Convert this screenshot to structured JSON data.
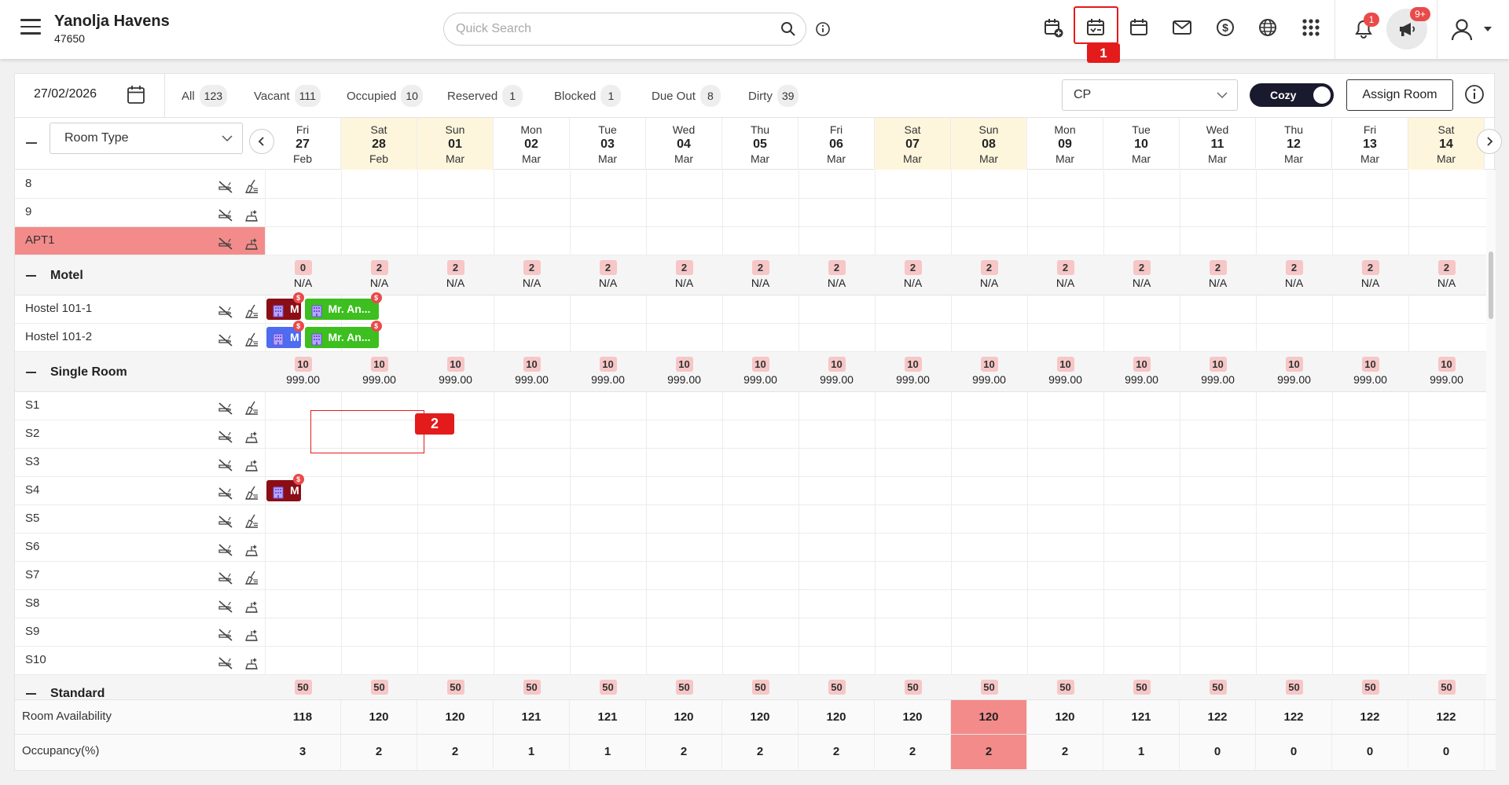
{
  "header": {
    "property_name": "Yanolja Havens",
    "property_id": "47650",
    "search_placeholder": "Quick Search",
    "icons": [
      "new-reservation-icon",
      "stay-view-icon",
      "calendar-icon",
      "mail-icon",
      "dollar-icon",
      "globe-icon",
      "apps-grid-icon"
    ],
    "notification_count": "1",
    "announcement_count": "9+",
    "highlight_1_label": "1"
  },
  "toolbar": {
    "date": "27/02/2026",
    "stats": [
      {
        "label": "All",
        "count": "123"
      },
      {
        "label": "Vacant",
        "count": "111"
      },
      {
        "label": "Occupied",
        "count": "10"
      },
      {
        "label": "Reserved",
        "count": "1"
      },
      {
        "label": "Blocked",
        "count": "1"
      },
      {
        "label": "Due Out",
        "count": "8"
      },
      {
        "label": "Dirty",
        "count": "39"
      }
    ],
    "rate_plan": "CP",
    "view_toggle": "Cozy",
    "assign_room": "Assign Room"
  },
  "grid": {
    "room_type_select": "Room Type",
    "dates": [
      {
        "dow": "Fri",
        "day": "27",
        "month": "Feb",
        "weekend": false
      },
      {
        "dow": "Sat",
        "day": "28",
        "month": "Feb",
        "weekend": true
      },
      {
        "dow": "Sun",
        "day": "01",
        "month": "Mar",
        "weekend": true
      },
      {
        "dow": "Mon",
        "day": "02",
        "month": "Mar",
        "weekend": false
      },
      {
        "dow": "Tue",
        "day": "03",
        "month": "Mar",
        "weekend": false
      },
      {
        "dow": "Wed",
        "day": "04",
        "month": "Mar",
        "weekend": false
      },
      {
        "dow": "Thu",
        "day": "05",
        "month": "Mar",
        "weekend": false
      },
      {
        "dow": "Fri",
        "day": "06",
        "month": "Mar",
        "weekend": false
      },
      {
        "dow": "Sat",
        "day": "07",
        "month": "Mar",
        "weekend": true
      },
      {
        "dow": "Sun",
        "day": "08",
        "month": "Mar",
        "weekend": true
      },
      {
        "dow": "Mon",
        "day": "09",
        "month": "Mar",
        "weekend": false
      },
      {
        "dow": "Tue",
        "day": "10",
        "month": "Mar",
        "weekend": false
      },
      {
        "dow": "Wed",
        "day": "11",
        "month": "Mar",
        "weekend": false
      },
      {
        "dow": "Thu",
        "day": "12",
        "month": "Mar",
        "weekend": false
      },
      {
        "dow": "Fri",
        "day": "13",
        "month": "Mar",
        "weekend": false
      },
      {
        "dow": "Sat",
        "day": "14",
        "month": "Mar",
        "weekend": true
      }
    ],
    "rows": [
      {
        "kind": "room",
        "label": "8",
        "clean": false
      },
      {
        "kind": "room",
        "label": "9",
        "clean": true
      },
      {
        "kind": "room",
        "label": "APT1",
        "clean": true,
        "highlight": true
      },
      {
        "kind": "group",
        "label": "Motel",
        "avail": [
          "0",
          "2",
          "2",
          "2",
          "2",
          "2",
          "2",
          "2",
          "2",
          "2",
          "2",
          "2",
          "2",
          "2",
          "2",
          "2"
        ],
        "rate": [
          "N/A",
          "N/A",
          "N/A",
          "N/A",
          "N/A",
          "N/A",
          "N/A",
          "N/A",
          "N/A",
          "N/A",
          "N/A",
          "N/A",
          "N/A",
          "N/A",
          "N/A",
          "N/A"
        ]
      },
      {
        "kind": "room",
        "label": "Hostel 101-1",
        "clean": false
      },
      {
        "kind": "room",
        "label": "Hostel 101-2",
        "clean": false
      },
      {
        "kind": "group",
        "label": "Single Room",
        "avail": [
          "10",
          "10",
          "10",
          "10",
          "10",
          "10",
          "10",
          "10",
          "10",
          "10",
          "10",
          "10",
          "10",
          "10",
          "10",
          "10"
        ],
        "rate": [
          "999.00",
          "999.00",
          "999.00",
          "999.00",
          "999.00",
          "999.00",
          "999.00",
          "999.00",
          "999.00",
          "999.00",
          "999.00",
          "999.00",
          "999.00",
          "999.00",
          "999.00",
          "999.00"
        ]
      },
      {
        "kind": "room",
        "label": "S1",
        "clean": false
      },
      {
        "kind": "room",
        "label": "S2",
        "clean": true
      },
      {
        "kind": "room",
        "label": "S3",
        "clean": true
      },
      {
        "kind": "room",
        "label": "S4",
        "clean": false
      },
      {
        "kind": "room",
        "label": "S5",
        "clean": false
      },
      {
        "kind": "room",
        "label": "S6",
        "clean": true
      },
      {
        "kind": "room",
        "label": "S7",
        "clean": false
      },
      {
        "kind": "room",
        "label": "S8",
        "clean": true
      },
      {
        "kind": "room",
        "label": "S9",
        "clean": true
      },
      {
        "kind": "room",
        "label": "S10",
        "clean": true
      },
      {
        "kind": "group",
        "label": "Standard",
        "avail": [
          "50",
          "50",
          "50",
          "50",
          "50",
          "50",
          "50",
          "50",
          "50",
          "50",
          "50",
          "50",
          "50",
          "50",
          "50",
          "50"
        ],
        "rate": []
      }
    ],
    "bookings": [
      {
        "row": "Hostel 101-1",
        "color": "#8b0e16",
        "text": "M",
        "start_col": 0,
        "span": 0.45
      },
      {
        "row": "Hostel 101-1",
        "color": "#3cbf1f",
        "text": "Mr. An...",
        "start_col": 0.5,
        "span": 0.97
      },
      {
        "row": "Hostel 101-2",
        "color": "#4d6cf0",
        "text": "M",
        "start_col": 0,
        "span": 0.45
      },
      {
        "row": "Hostel 101-2",
        "color": "#3cbf1f",
        "text": "Mr. An...",
        "start_col": 0.5,
        "span": 0.97
      },
      {
        "row": "S4",
        "color": "#8b0e16",
        "text": "M",
        "start_col": 0,
        "span": 0.45
      }
    ],
    "highlight_2_label": "2"
  },
  "footer": {
    "availability_label": "Room Availability",
    "availability": [
      "118",
      "120",
      "120",
      "121",
      "121",
      "120",
      "120",
      "120",
      "120",
      "120",
      "120",
      "121",
      "122",
      "122",
      "122",
      "122"
    ],
    "occupancy_label": "Occupancy(%)",
    "occupancy": [
      "3",
      "2",
      "2",
      "1",
      "1",
      "2",
      "2",
      "2",
      "2",
      "2",
      "2",
      "1",
      "0",
      "0",
      "0",
      "0"
    ],
    "hot_column": 9
  },
  "colors": {
    "accent": "#e31b1b",
    "weekend": "#fdf6dd",
    "apt_highlight": "#f48b8b",
    "hot": "#f48b8b"
  }
}
